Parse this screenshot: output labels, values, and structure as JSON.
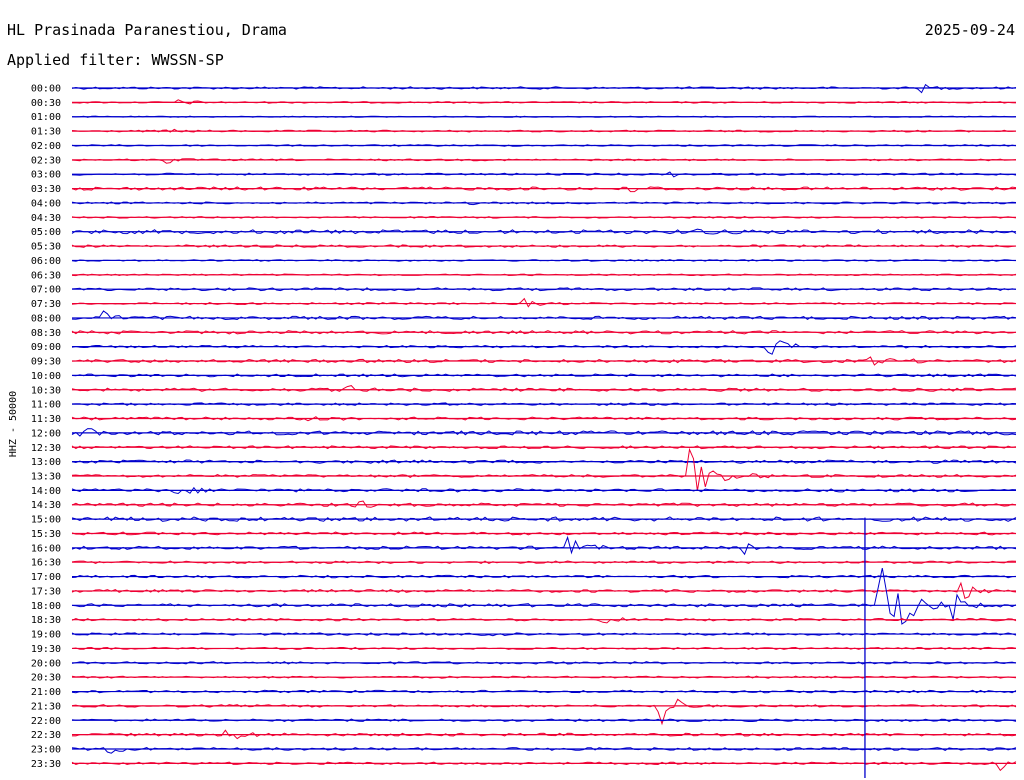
{
  "header": {
    "station": "HL Prasinada Paranestiou, Drama",
    "date": "2025-09-24",
    "filter": "Applied filter: WWSSN-SP"
  },
  "chart_data": {
    "type": "line",
    "title": "HL Prasinada Paranestiou, Drama",
    "ylabel": "HHZ - 50000",
    "row_labels": [
      "00:00",
      "00:30",
      "01:00",
      "01:30",
      "02:00",
      "02:30",
      "03:00",
      "03:30",
      "04:00",
      "04:30",
      "05:00",
      "05:30",
      "06:00",
      "06:30",
      "07:00",
      "07:30",
      "08:00",
      "08:30",
      "09:00",
      "09:30",
      "10:00",
      "10:30",
      "11:00",
      "11:30",
      "12:00",
      "12:30",
      "13:00",
      "13:30",
      "14:00",
      "14:30",
      "15:00",
      "15:30",
      "16:00",
      "16:30",
      "17:00",
      "17:30",
      "18:00",
      "18:30",
      "19:00",
      "19:30",
      "20:00",
      "20:30",
      "21:00",
      "21:30",
      "22:00",
      "22:30",
      "23:00",
      "23:30"
    ],
    "minutes_per_row": 30,
    "colors": [
      "#0000cc",
      "#ee0033"
    ],
    "noise_level": [
      1.2,
      0.8,
      0.6,
      0.9,
      0.8,
      0.9,
      1.0,
      1.6,
      1.0,
      0.8,
      2.0,
      1.2,
      0.8,
      0.8,
      1.4,
      1.0,
      1.6,
      1.6,
      1.2,
      1.6,
      1.4,
      1.6,
      1.2,
      1.4,
      2.0,
      1.4,
      1.6,
      1.4,
      1.6,
      1.6,
      2.2,
      1.4,
      1.6,
      1.2,
      1.2,
      1.4,
      1.6,
      1.2,
      1.2,
      1.0,
      1.2,
      1.0,
      1.2,
      1.2,
      1.2,
      1.4,
      1.4,
      1.2
    ],
    "events": [
      {
        "row": 0,
        "minute": 26.9,
        "amplitude": 5,
        "duration_min": 0.9
      },
      {
        "row": 1,
        "minute": 3.2,
        "amplitude": 3,
        "duration_min": 1.5
      },
      {
        "row": 3,
        "minute": 2.9,
        "amplitude": 3,
        "duration_min": 1.0
      },
      {
        "row": 5,
        "minute": 2.9,
        "amplitude": 8,
        "duration_min": 0.7
      },
      {
        "row": 6,
        "minute": 18.9,
        "amplitude": 3,
        "duration_min": 1.2
      },
      {
        "row": 7,
        "minute": 17.7,
        "amplitude": 5,
        "duration_min": 1.2
      },
      {
        "row": 8,
        "minute": 12.3,
        "amplitude": 6,
        "duration_min": 0.6
      },
      {
        "row": 10,
        "minute": 19.6,
        "amplitude": 4,
        "duration_min": 1.2
      },
      {
        "row": 15,
        "minute": 14.3,
        "amplitude": 6,
        "duration_min": 1.0
      },
      {
        "row": 16,
        "minute": 0.9,
        "amplitude": 9,
        "duration_min": 0.8
      },
      {
        "row": 18,
        "minute": 22.1,
        "amplitude": 12,
        "duration_min": 1.3
      },
      {
        "row": 19,
        "minute": 25.2,
        "amplitude": 4,
        "duration_min": 2.0
      },
      {
        "row": 21,
        "minute": 8.7,
        "amplitude": 5,
        "duration_min": 0.9
      },
      {
        "row": 23,
        "minute": 7.4,
        "amplitude": 5,
        "duration_min": 1.2
      },
      {
        "row": 24,
        "minute": 0.2,
        "amplitude": 10,
        "duration_min": 0.8
      },
      {
        "row": 27,
        "minute": 19.6,
        "amplitude": 28,
        "duration_min": 1.8
      },
      {
        "row": 28,
        "minute": 2.9,
        "amplitude": 4,
        "duration_min": 2.5
      },
      {
        "row": 29,
        "minute": 9.0,
        "amplitude": 8,
        "duration_min": 0.7
      },
      {
        "row": 29,
        "minute": 17.1,
        "amplitude": 6,
        "duration_min": 0.7
      },
      {
        "row": 32,
        "minute": 15.7,
        "amplitude": 12,
        "duration_min": 1.2
      },
      {
        "row": 32,
        "minute": 21.3,
        "amplitude": 7,
        "duration_min": 0.7
      },
      {
        "row": 35,
        "minute": 28.2,
        "amplitude": 12,
        "duration_min": 1.0
      },
      {
        "row": 36,
        "minute": 25.6,
        "amplitude": 70,
        "duration_min": 1.7
      },
      {
        "row": 36,
        "minute": 28.0,
        "amplitude": 12,
        "duration_min": 0.9
      },
      {
        "row": 37,
        "minute": 16.8,
        "amplitude": 8,
        "duration_min": 0.9
      },
      {
        "row": 38,
        "minute": 13.0,
        "amplitude": 4,
        "duration_min": 1.5
      },
      {
        "row": 43,
        "minute": 18.6,
        "amplitude": 40,
        "duration_min": 1.0
      },
      {
        "row": 45,
        "minute": 4.8,
        "amplitude": 8,
        "duration_min": 1.5
      },
      {
        "row": 46,
        "minute": 1.0,
        "amplitude": 9,
        "duration_min": 1.0
      },
      {
        "row": 47,
        "minute": 29.4,
        "amplitude": 14,
        "duration_min": 0.6
      }
    ],
    "spikes": [
      {
        "row": 30,
        "minute": 25.2,
        "extent_rows": 23
      }
    ]
  }
}
